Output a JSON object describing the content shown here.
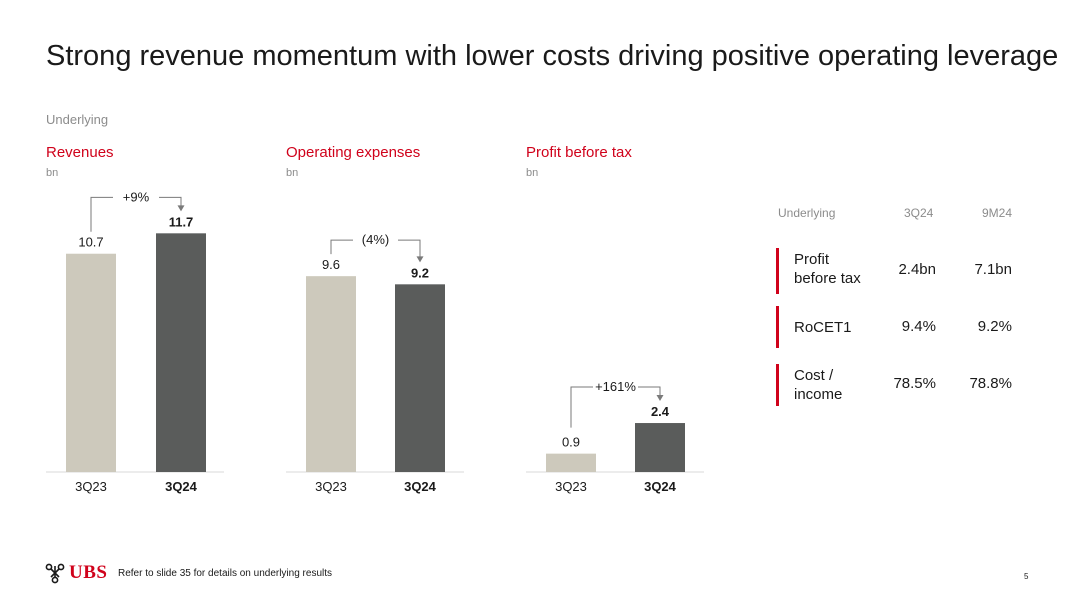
{
  "title": "Strong revenue momentum with lower costs driving positive operating leverage",
  "subtitle": "Underlying",
  "chart_data": [
    {
      "type": "bar",
      "title": "Revenues",
      "unit": "bn",
      "categories": [
        "3Q23",
        "3Q24"
      ],
      "values": [
        10.7,
        11.7
      ],
      "labels": [
        "10.7",
        "11.7"
      ],
      "change_label": "+9%",
      "colors": [
        "#cdc9bc",
        "#5a5c5b"
      ]
    },
    {
      "type": "bar",
      "title": "Operating expenses",
      "unit": "bn",
      "categories": [
        "3Q23",
        "3Q24"
      ],
      "values": [
        9.6,
        9.2
      ],
      "labels": [
        "9.6",
        "9.2"
      ],
      "change_label": "(4%)",
      "colors": [
        "#cdc9bc",
        "#5a5c5b"
      ]
    },
    {
      "type": "bar",
      "title": "Profit before tax",
      "unit": "bn",
      "categories": [
        "3Q23",
        "3Q24"
      ],
      "values": [
        0.9,
        2.4
      ],
      "labels": [
        "0.9",
        "2.4"
      ],
      "change_label": "+161%",
      "colors": [
        "#cdc9bc",
        "#5a5c5b"
      ]
    }
  ],
  "kpi_table": {
    "header": {
      "label": "Underlying",
      "col1": "3Q24",
      "col2": "9M24"
    },
    "rows": [
      {
        "label_line1": "Profit",
        "label_line2": "before tax",
        "col1": "2.4bn",
        "col2": "7.1bn"
      },
      {
        "label_line1": "RoCET1",
        "label_line2": "",
        "col1": "9.4%",
        "col2": "9.2%"
      },
      {
        "label_line1": "Cost /",
        "label_line2": "income",
        "col1": "78.5%",
        "col2": "78.8%"
      }
    ],
    "accent_color": "#d0021b"
  },
  "footer": {
    "logo_text": "UBS",
    "note": "Refer to slide 35 for details on underlying results",
    "page_number": "5"
  }
}
